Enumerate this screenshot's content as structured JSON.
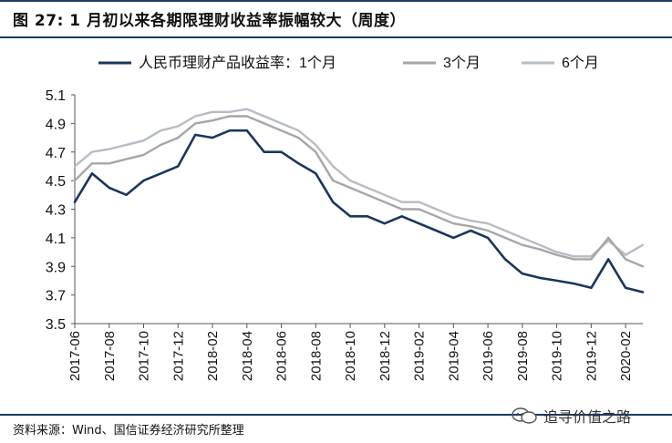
{
  "header": {
    "title": "图 27:  1 月初以来各期限理财收益率振幅较大（周度）"
  },
  "footer": {
    "source": "资料来源：Wind、国信证券经济研究所整理",
    "watermark": "追寻价值之路"
  },
  "colors": {
    "series_1m": "#1b365d",
    "series_3m": "#a6a6a6",
    "series_6m": "#b5bcc4",
    "rule": "#1e3a64"
  },
  "icons": {
    "watermark": "wechat-icon"
  },
  "chart_data": {
    "type": "line",
    "title": "",
    "xlabel": "",
    "ylabel": "",
    "ylim": [
      3.5,
      5.1
    ],
    "yticks": [
      3.5,
      3.7,
      3.9,
      4.1,
      4.3,
      4.5,
      4.7,
      4.9,
      5.1
    ],
    "ytick_labels": [
      "3.5",
      "3.7",
      "3.9",
      "4.1",
      "4.3",
      "4.5",
      "4.7",
      "4.9",
      "5.1"
    ],
    "xlim": [
      "2017-06",
      "2020-03"
    ],
    "xtick_labels": [
      "2017-06",
      "2017-08",
      "2017-10",
      "2017-12",
      "2018-02",
      "2018-04",
      "2018-06",
      "2018-08",
      "2018-10",
      "2018-12",
      "2019-02",
      "2019-04",
      "2019-06",
      "2019-08",
      "2019-10",
      "2019-12",
      "2020-02"
    ],
    "grid": false,
    "legend": "top",
    "series": [
      {
        "name": "人民币理财产品收益率：1个月",
        "x": [
          "2017-06",
          "2017-07",
          "2017-08",
          "2017-09",
          "2017-10",
          "2017-11",
          "2017-12",
          "2018-01",
          "2018-02",
          "2018-03",
          "2018-04",
          "2018-05",
          "2018-06",
          "2018-07",
          "2018-08",
          "2018-09",
          "2018-10",
          "2018-11",
          "2018-12",
          "2019-01",
          "2019-02",
          "2019-03",
          "2019-04",
          "2019-05",
          "2019-06",
          "2019-07",
          "2019-08",
          "2019-09",
          "2019-10",
          "2019-11",
          "2019-12",
          "2020-01",
          "2020-02",
          "2020-03"
        ],
        "values": [
          4.35,
          4.55,
          4.45,
          4.4,
          4.5,
          4.55,
          4.6,
          4.82,
          4.8,
          4.85,
          4.85,
          4.7,
          4.7,
          4.62,
          4.55,
          4.35,
          4.25,
          4.25,
          4.2,
          4.25,
          4.2,
          4.15,
          4.1,
          4.15,
          4.1,
          3.95,
          3.85,
          3.82,
          3.8,
          3.78,
          3.75,
          3.95,
          3.75,
          3.72
        ]
      },
      {
        "name": "3个月",
        "x": [
          "2017-06",
          "2017-07",
          "2017-08",
          "2017-09",
          "2017-10",
          "2017-11",
          "2017-12",
          "2018-01",
          "2018-02",
          "2018-03",
          "2018-04",
          "2018-05",
          "2018-06",
          "2018-07",
          "2018-08",
          "2018-09",
          "2018-10",
          "2018-11",
          "2018-12",
          "2019-01",
          "2019-02",
          "2019-03",
          "2019-04",
          "2019-05",
          "2019-06",
          "2019-07",
          "2019-08",
          "2019-09",
          "2019-10",
          "2019-11",
          "2019-12",
          "2020-01",
          "2020-02",
          "2020-03"
        ],
        "values": [
          4.5,
          4.62,
          4.62,
          4.65,
          4.68,
          4.75,
          4.8,
          4.9,
          4.92,
          4.95,
          4.95,
          4.9,
          4.85,
          4.8,
          4.7,
          4.5,
          4.45,
          4.4,
          4.35,
          4.3,
          4.3,
          4.25,
          4.2,
          4.18,
          4.15,
          4.1,
          4.05,
          4.02,
          3.98,
          3.95,
          3.95,
          4.1,
          3.95,
          3.9
        ]
      },
      {
        "name": "6个月",
        "x": [
          "2017-06",
          "2017-07",
          "2017-08",
          "2017-09",
          "2017-10",
          "2017-11",
          "2017-12",
          "2018-01",
          "2018-02",
          "2018-03",
          "2018-04",
          "2018-05",
          "2018-06",
          "2018-07",
          "2018-08",
          "2018-09",
          "2018-10",
          "2018-11",
          "2018-12",
          "2019-01",
          "2019-02",
          "2019-03",
          "2019-04",
          "2019-05",
          "2019-06",
          "2019-07",
          "2019-08",
          "2019-09",
          "2019-10",
          "2019-11",
          "2019-12",
          "2020-01",
          "2020-02",
          "2020-03"
        ],
        "values": [
          4.6,
          4.7,
          4.72,
          4.75,
          4.78,
          4.85,
          4.88,
          4.95,
          4.98,
          4.98,
          5.0,
          4.95,
          4.9,
          4.85,
          4.75,
          4.6,
          4.5,
          4.45,
          4.4,
          4.35,
          4.35,
          4.3,
          4.25,
          4.22,
          4.2,
          4.15,
          4.1,
          4.05,
          4.0,
          3.97,
          3.97,
          4.08,
          3.98,
          4.05
        ]
      }
    ]
  }
}
